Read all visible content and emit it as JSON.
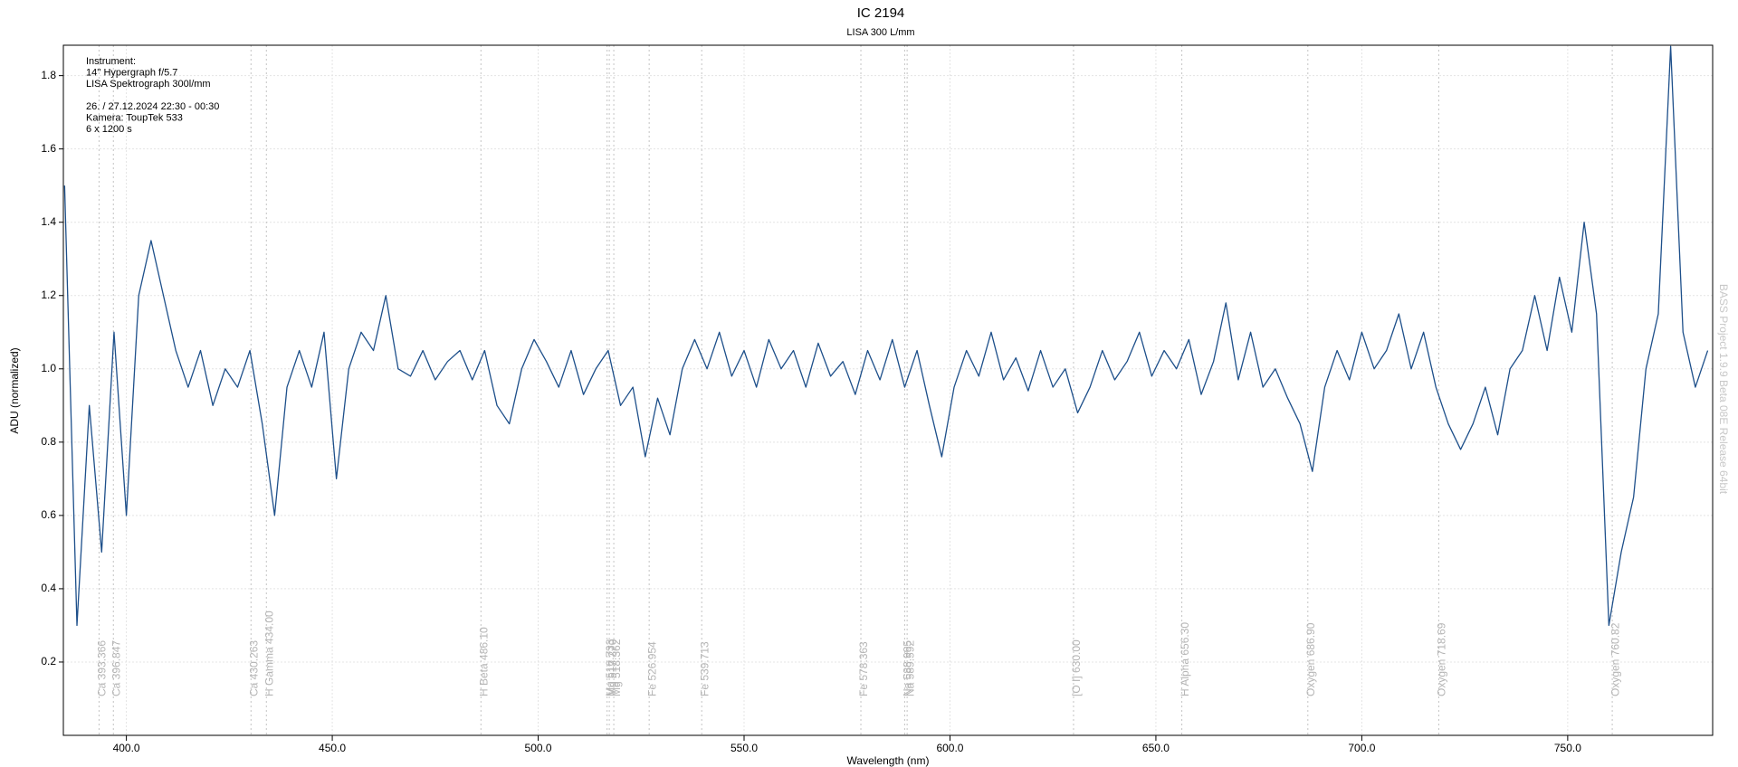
{
  "chart_data": {
    "type": "line",
    "title": "IC 2194",
    "subtitle": "LISA 300 L/mm",
    "x_label": "Wavelength (nm)",
    "y_label": "ADU (normalized)",
    "annotation_lines": [
      "Instrument:",
      "14'' Hypergraph f/5.7",
      "LISA Spektrograph 300l/mm",
      "26.  / 27.12.2024  22:30 - 00:30",
      "Kamera: ToupTek 533",
      "6 x 1200 s"
    ],
    "watermark": "BASS Project 1.9.9 Beta 08E Release 64bit",
    "xlim": [
      384.7,
      785.2
    ],
    "ylim": [
      0,
      1.883
    ],
    "xticks": [
      {
        "value": 400,
        "label": "400.0"
      },
      {
        "value": 450,
        "label": "450.0"
      },
      {
        "value": 500,
        "label": "500.0"
      },
      {
        "value": 550,
        "label": "550.0"
      },
      {
        "value": 600,
        "label": "600.0"
      },
      {
        "value": 650,
        "label": "650.0"
      },
      {
        "value": 700,
        "label": "700.0"
      },
      {
        "value": 750,
        "label": "750.0"
      }
    ],
    "yticks": [
      0.2,
      0.4,
      0.6,
      0.8,
      {
        "value": 1,
        "label": "1.0"
      },
      1.2,
      1.4,
      1.6,
      1.8
    ],
    "grid": true,
    "line_markers": [
      {
        "label": "Ca 393.366",
        "x": 393.366
      },
      {
        "label": "Ca 396.847",
        "x": 396.847
      },
      {
        "label": "Ca 430.263",
        "x": 430.263
      },
      {
        "label": "H Gamma 434.00",
        "x": 434.0
      },
      {
        "label": "H Beta 486.10",
        "x": 486.1
      },
      {
        "label": "Mg 516.733",
        "x": 516.733
      },
      {
        "label": "Mg 517.270",
        "x": 517.27
      },
      {
        "label": "Mg 518.362",
        "x": 518.362
      },
      {
        "label": "Fe 526.954",
        "x": 526.954
      },
      {
        "label": "Fe 539.713",
        "x": 539.713
      },
      {
        "label": "Fe 578.363",
        "x": 578.363
      },
      {
        "label": "Na 588.995",
        "x": 588.995
      },
      {
        "label": "Na 589.592",
        "x": 589.592
      },
      {
        "label": "[O I] 630.00",
        "x": 630.0
      },
      {
        "label": "H Alpha 656.30",
        "x": 656.3
      },
      {
        "label": "Oxygen 686.90",
        "x": 686.9
      },
      {
        "label": "Oxygen 718.69",
        "x": 718.69
      },
      {
        "label": "Oxygen 760.82",
        "x": 760.82
      }
    ],
    "x": [
      385,
      388,
      391,
      394,
      397,
      400,
      403,
      406,
      409,
      412,
      415,
      418,
      421,
      424,
      427,
      430,
      433,
      436,
      439,
      442,
      445,
      448,
      451,
      454,
      457,
      460,
      463,
      466,
      469,
      472,
      475,
      478,
      481,
      484,
      487,
      490,
      493,
      496,
      499,
      502,
      505,
      508,
      511,
      514,
      517,
      520,
      523,
      526,
      529,
      532,
      535,
      538,
      541,
      544,
      547,
      550,
      553,
      556,
      559,
      562,
      565,
      568,
      571,
      574,
      577,
      580,
      583,
      586,
      589,
      592,
      595,
      598,
      601,
      604,
      607,
      610,
      613,
      616,
      619,
      622,
      625,
      628,
      631,
      634,
      637,
      640,
      643,
      646,
      649,
      652,
      655,
      658,
      661,
      664,
      667,
      670,
      673,
      676,
      679,
      682,
      685,
      688,
      691,
      694,
      697,
      700,
      703,
      706,
      709,
      712,
      715,
      718,
      721,
      724,
      727,
      730,
      733,
      736,
      739,
      742,
      745,
      748,
      751,
      754,
      757,
      760,
      763,
      766,
      769,
      772,
      775,
      778,
      781,
      784
    ],
    "series": [
      {
        "name": "IC 2194",
        "color": "#1d4f8a",
        "values": [
          1.5,
          0.3,
          0.9,
          0.5,
          1.1,
          0.6,
          1.2,
          1.35,
          1.2,
          1.05,
          0.95,
          1.05,
          0.9,
          1.0,
          0.95,
          1.05,
          0.85,
          0.6,
          0.95,
          1.05,
          0.95,
          1.1,
          0.7,
          1.0,
          1.1,
          1.05,
          1.2,
          1.0,
          0.98,
          1.05,
          0.97,
          1.02,
          1.05,
          0.97,
          1.05,
          0.9,
          0.85,
          1.0,
          1.08,
          1.02,
          0.95,
          1.05,
          0.93,
          1.0,
          1.05,
          0.9,
          0.95,
          0.76,
          0.92,
          0.82,
          1.0,
          1.08,
          1.0,
          1.1,
          0.98,
          1.05,
          0.95,
          1.08,
          1.0,
          1.05,
          0.95,
          1.07,
          0.98,
          1.02,
          0.93,
          1.05,
          0.97,
          1.08,
          0.95,
          1.05,
          0.9,
          0.76,
          0.95,
          1.05,
          0.98,
          1.1,
          0.97,
          1.03,
          0.94,
          1.05,
          0.95,
          1.0,
          0.88,
          0.95,
          1.05,
          0.97,
          1.02,
          1.1,
          0.98,
          1.05,
          1.0,
          1.08,
          0.93,
          1.02,
          1.18,
          0.97,
          1.1,
          0.95,
          1.0,
          0.92,
          0.85,
          0.72,
          0.95,
          1.05,
          0.97,
          1.1,
          1.0,
          1.05,
          1.15,
          1.0,
          1.1,
          0.95,
          0.85,
          0.78,
          0.85,
          0.95,
          0.82,
          1.0,
          1.05,
          1.2,
          1.05,
          1.25,
          1.1,
          1.4,
          1.15,
          0.3,
          0.5,
          0.65,
          1.0,
          1.15,
          1.88,
          1.1,
          0.95,
          1.05
        ]
      }
    ]
  }
}
